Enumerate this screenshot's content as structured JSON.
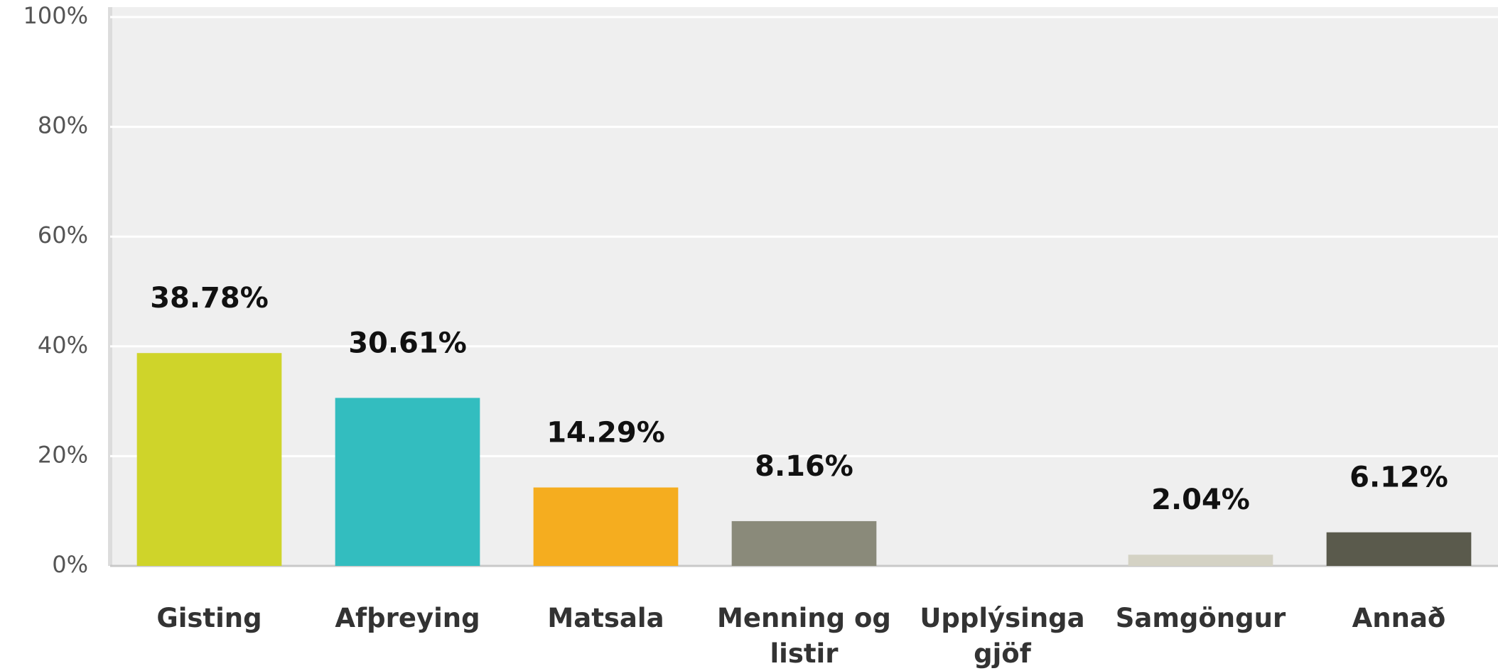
{
  "chart_data": {
    "type": "bar",
    "categories": [
      "Gisting",
      "Afþreying",
      "Matsala",
      "Menning og listir",
      "Upplýsingagjöf",
      "Samgöngur",
      "Annað"
    ],
    "values": [
      38.78,
      30.61,
      14.29,
      8.16,
      0,
      2.04,
      6.12
    ],
    "value_labels": [
      "38.78%",
      "30.61%",
      "14.29%",
      "8.16%",
      null,
      "2.04%",
      "6.12%"
    ],
    "colors": [
      "#cfd42a",
      "#33bdbf",
      "#f5ad1f",
      "#8a8a7a",
      "#b8b49e",
      "#d4d2c4",
      "#5a5a4c"
    ],
    "ylim": [
      0,
      100
    ],
    "yticks": [
      {
        "value": 0,
        "label": "0%"
      },
      {
        "value": 20,
        "label": "20%"
      },
      {
        "value": 40,
        "label": "40%"
      },
      {
        "value": 60,
        "label": "60%"
      },
      {
        "value": 80,
        "label": "80%"
      },
      {
        "value": 100,
        "label": "100%"
      }
    ],
    "grid": true
  }
}
